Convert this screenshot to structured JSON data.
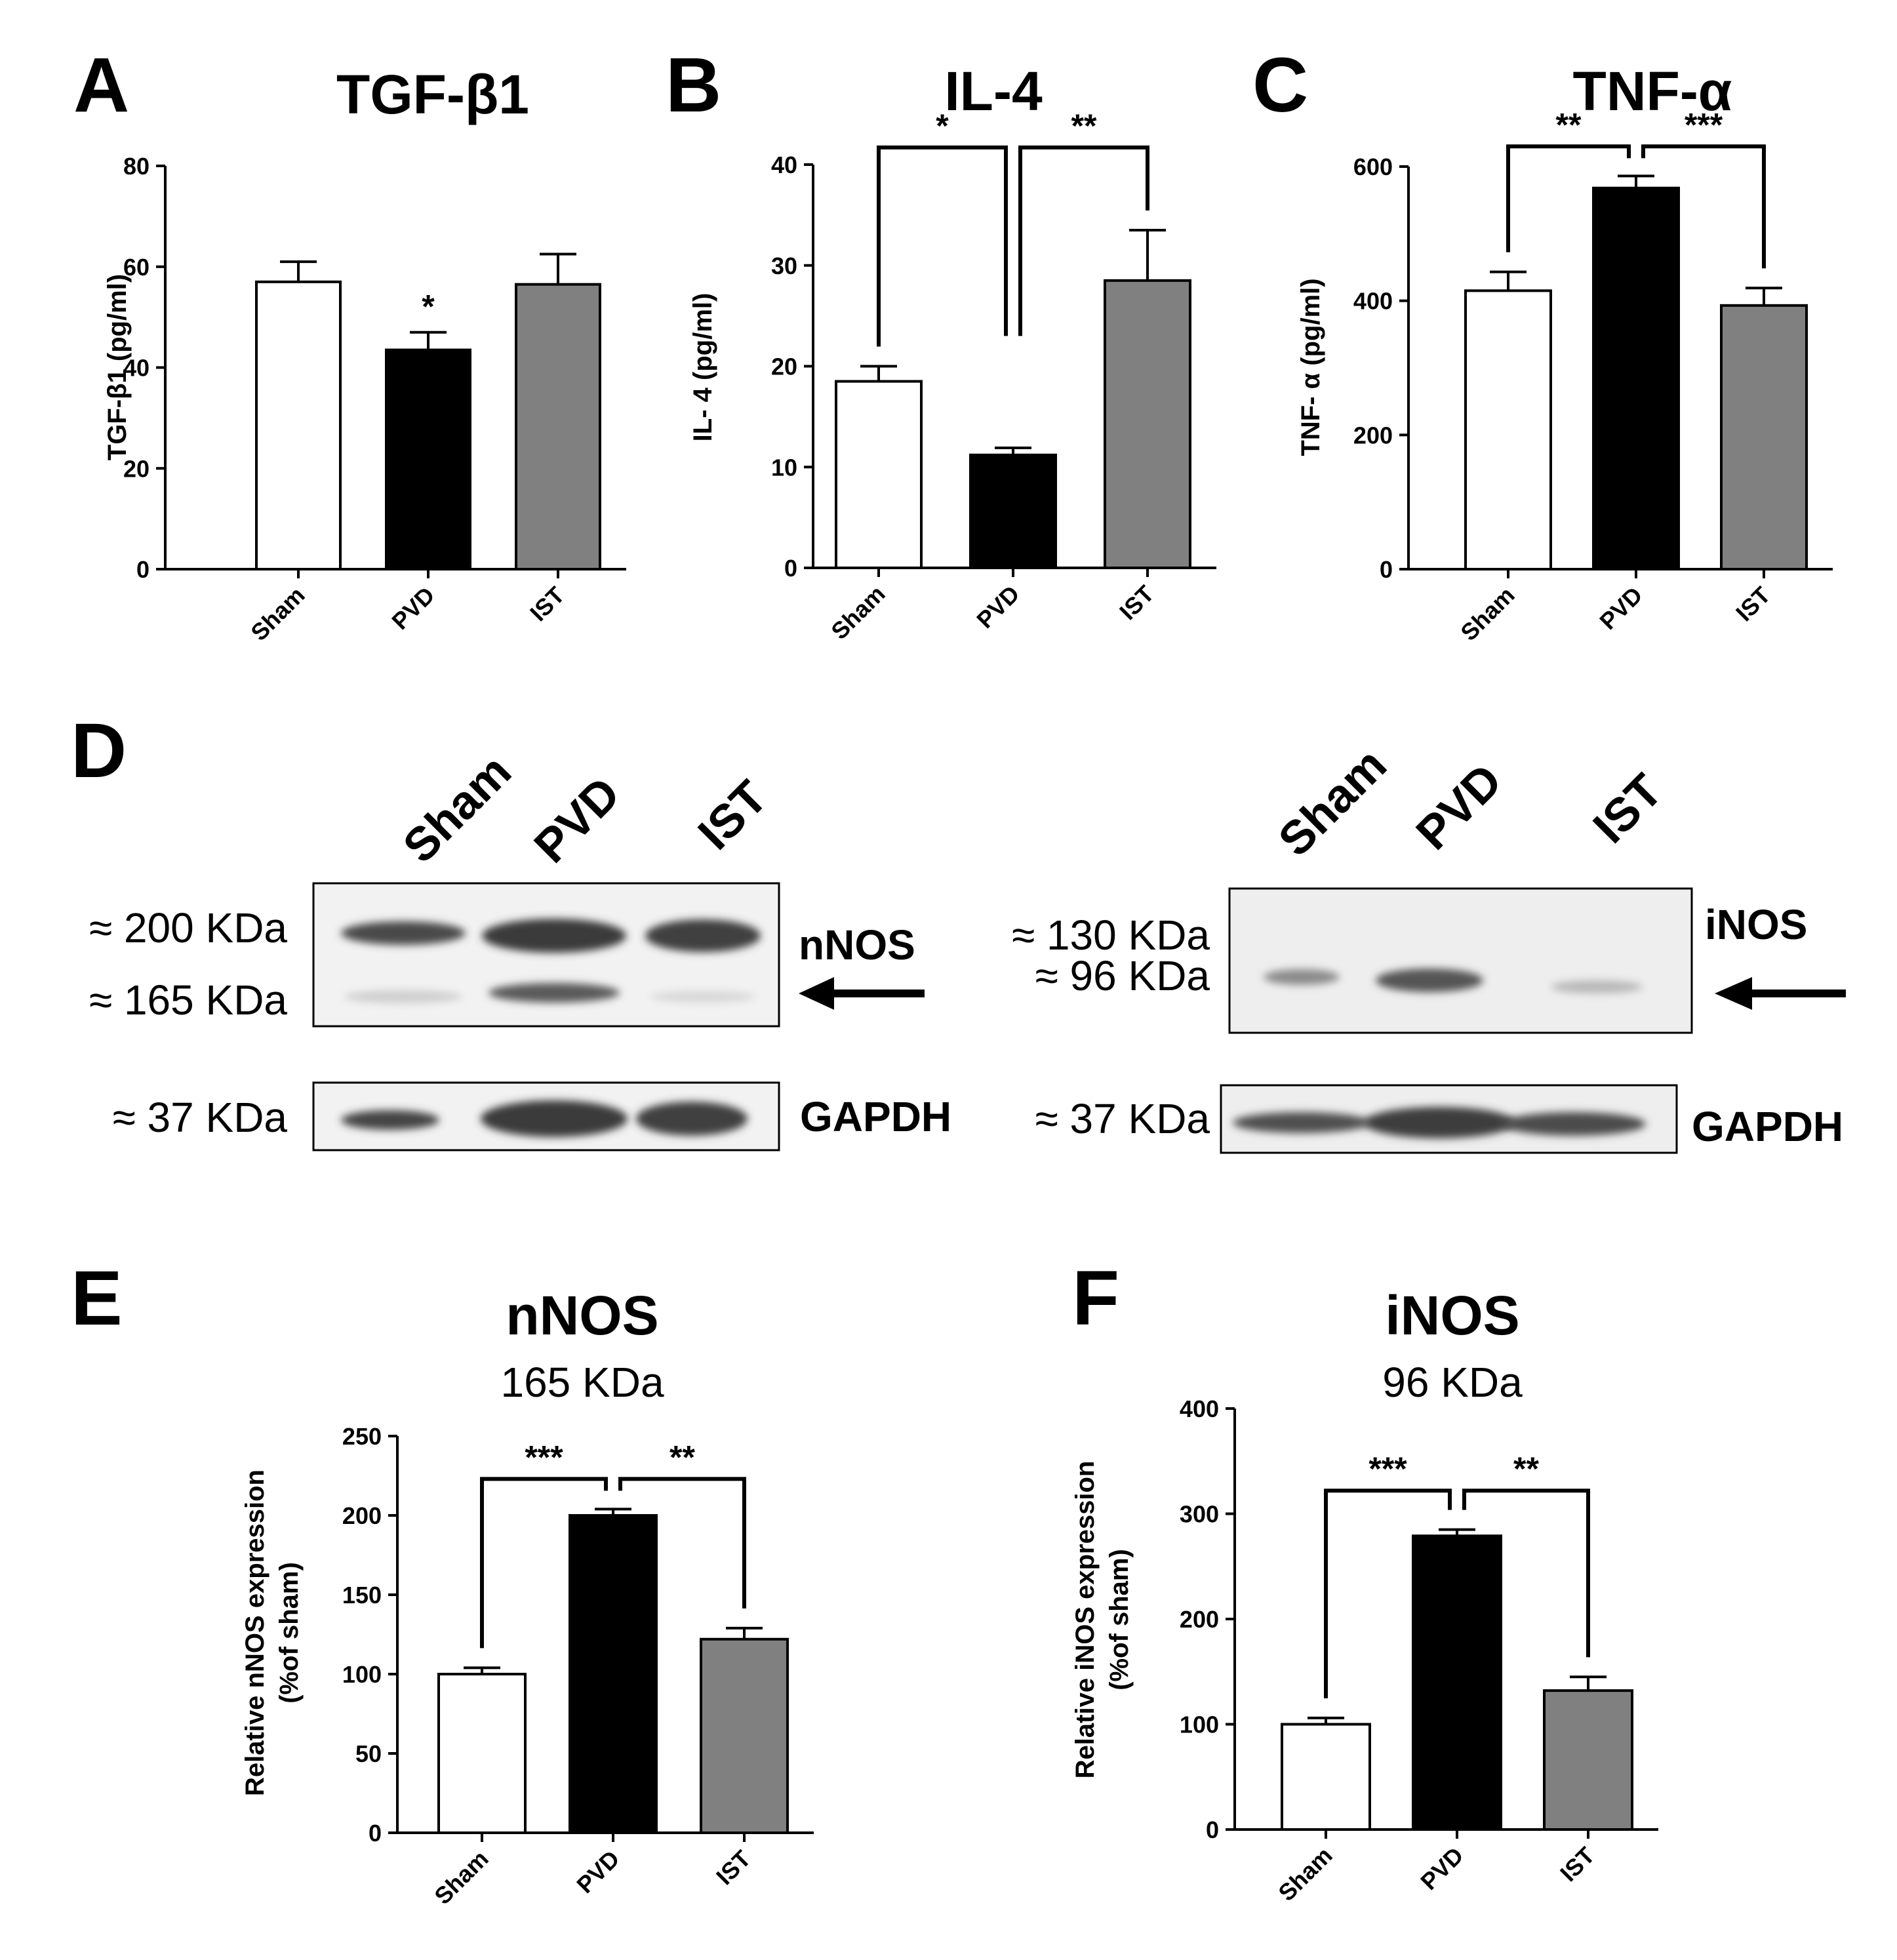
{
  "colors": {
    "sham": "#ffffff",
    "pvd": "#000000",
    "ist": "#808080",
    "axis": "#000000"
  },
  "chart_data": [
    {
      "panel": "A",
      "type": "bar",
      "title": "TGF-β1",
      "ylabel": "TGF-β1 (pg/ml)",
      "categories": [
        "Sham",
        "PVD",
        "IST"
      ],
      "values": [
        57,
        43.5,
        56.5
      ],
      "errors": [
        4,
        3.5,
        6
      ],
      "ylim": [
        0,
        80
      ],
      "ticks": [
        0,
        20,
        40,
        60,
        80
      ],
      "annotations": [
        {
          "type": "star",
          "bar": 1,
          "text": "*"
        }
      ]
    },
    {
      "panel": "B",
      "type": "bar",
      "title": "IL-4",
      "ylabel": "IL- 4 (pg/ml)",
      "categories": [
        "Sham",
        "PVD",
        "IST"
      ],
      "values": [
        18.5,
        11.2,
        28.5
      ],
      "errors": [
        1.5,
        0.7,
        5
      ],
      "ylim": [
        0,
        40
      ],
      "ticks": [
        0,
        10,
        20,
        30,
        40
      ],
      "annotations": [
        {
          "type": "bracket",
          "from": 0,
          "to": 1,
          "text": "*",
          "y": 41.7,
          "top_y": 23
        },
        {
          "type": "bracket",
          "from": 1,
          "to": 2,
          "text": "**",
          "y": 41.7,
          "top_y": 23
        }
      ]
    },
    {
      "panel": "C",
      "type": "bar",
      "title": "TNF-α",
      "ylabel": "TNF- α (pg/ml)",
      "categories": [
        "Sham",
        "PVD",
        "IST"
      ],
      "values": [
        415,
        568,
        393
      ],
      "errors": [
        28,
        18,
        26
      ],
      "ylim": [
        0,
        600
      ],
      "ticks": [
        0,
        200,
        400,
        600
      ],
      "annotations": [
        {
          "type": "bracket",
          "from": 0,
          "to": 1,
          "text": "**",
          "y": 630
        },
        {
          "type": "bracket",
          "from": 1,
          "to": 2,
          "text": "***",
          "y": 630
        }
      ]
    },
    {
      "panel": "E",
      "type": "bar",
      "title": "nNOS",
      "subtitle": "165 KDa",
      "ylabel_lines": [
        "Relative nNOS expression",
        "(%of sham)"
      ],
      "categories": [
        "Sham",
        "PVD",
        "IST"
      ],
      "values": [
        100,
        200,
        122
      ],
      "errors": [
        4,
        4,
        7
      ],
      "ylim": [
        0,
        250
      ],
      "ticks": [
        0,
        50,
        100,
        150,
        200,
        250
      ],
      "annotations": [
        {
          "type": "bracket",
          "from": 0,
          "to": 1,
          "text": "***",
          "y": 223
        },
        {
          "type": "bracket",
          "from": 1,
          "to": 2,
          "text": "**",
          "y": 223
        }
      ]
    },
    {
      "panel": "F",
      "type": "bar",
      "title": "iNOS",
      "subtitle": "96 KDa",
      "ylabel_lines": [
        "Relative iNOS expression",
        "(%of sham)"
      ],
      "categories": [
        "Sham",
        "PVD",
        "IST"
      ],
      "values": [
        100,
        279,
        132
      ],
      "errors": [
        6,
        6,
        13
      ],
      "ylim": [
        0,
        400
      ],
      "ticks": [
        0,
        100,
        200,
        300,
        400
      ],
      "annotations": [
        {
          "type": "bracket",
          "from": 0,
          "to": 1,
          "text": "***",
          "y": 322
        },
        {
          "type": "bracket",
          "from": 1,
          "to": 2,
          "text": "**",
          "y": 322
        }
      ]
    }
  ],
  "western_blot": {
    "panel": "D",
    "left": {
      "lanes": [
        "Sham",
        "PVD",
        "IST"
      ],
      "markers": [
        "≈ 200 KDa",
        "≈ 165 KDa",
        "≈  37 KDa"
      ],
      "protein": "nNOS",
      "loading_control": "GAPDH"
    },
    "right": {
      "lanes": [
        "Sham",
        "PVD",
        "IST"
      ],
      "markers": [
        "≈ 130 KDa",
        "≈ 96 KDa",
        "≈ 37 KDa"
      ],
      "protein": "iNOS",
      "loading_control": "GAPDH"
    }
  }
}
